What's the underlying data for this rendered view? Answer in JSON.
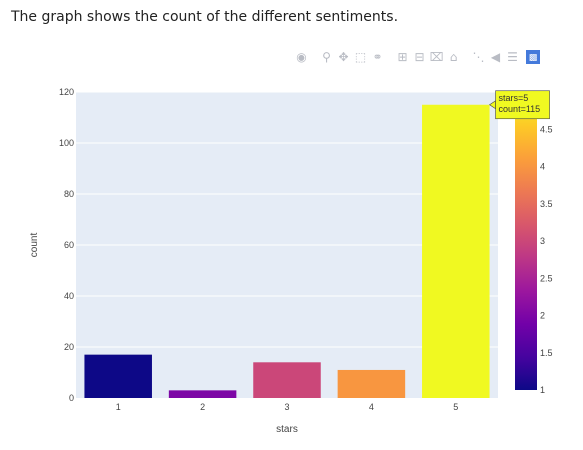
{
  "caption": "The graph shows the count of the different sentiments.",
  "modebar": {
    "icons": [
      "camera-icon",
      "zoom-icon",
      "pan-icon",
      "box-select-icon",
      "lasso-icon",
      "zoom-in-icon",
      "zoom-out-icon",
      "autoscale-icon",
      "reset-axes-icon",
      "spike-lines-icon",
      "hover-closest-icon",
      "hover-compare-icon",
      "plotly-logo-icon"
    ]
  },
  "chart_data": {
    "type": "bar",
    "categories": [
      "1",
      "2",
      "3",
      "4",
      "5"
    ],
    "values": [
      17,
      3,
      14,
      11,
      115
    ],
    "color_values": [
      1,
      2,
      3,
      4,
      5
    ],
    "xlabel": "stars",
    "ylabel": "count",
    "ylim": [
      0,
      120
    ],
    "yticks": [
      0,
      20,
      40,
      60,
      80,
      100,
      120
    ],
    "grid": true,
    "plot_background": "#e5ecf6",
    "colorscale": "plasma",
    "colorbar": {
      "ticks": [
        "1",
        "1.5",
        "2",
        "2.5",
        "3",
        "3.5",
        "4",
        "4.5"
      ],
      "range": [
        1,
        5
      ]
    },
    "hover": {
      "category": "5",
      "lines": [
        "stars=5",
        "count=115"
      ],
      "background": "#f0f921"
    }
  }
}
